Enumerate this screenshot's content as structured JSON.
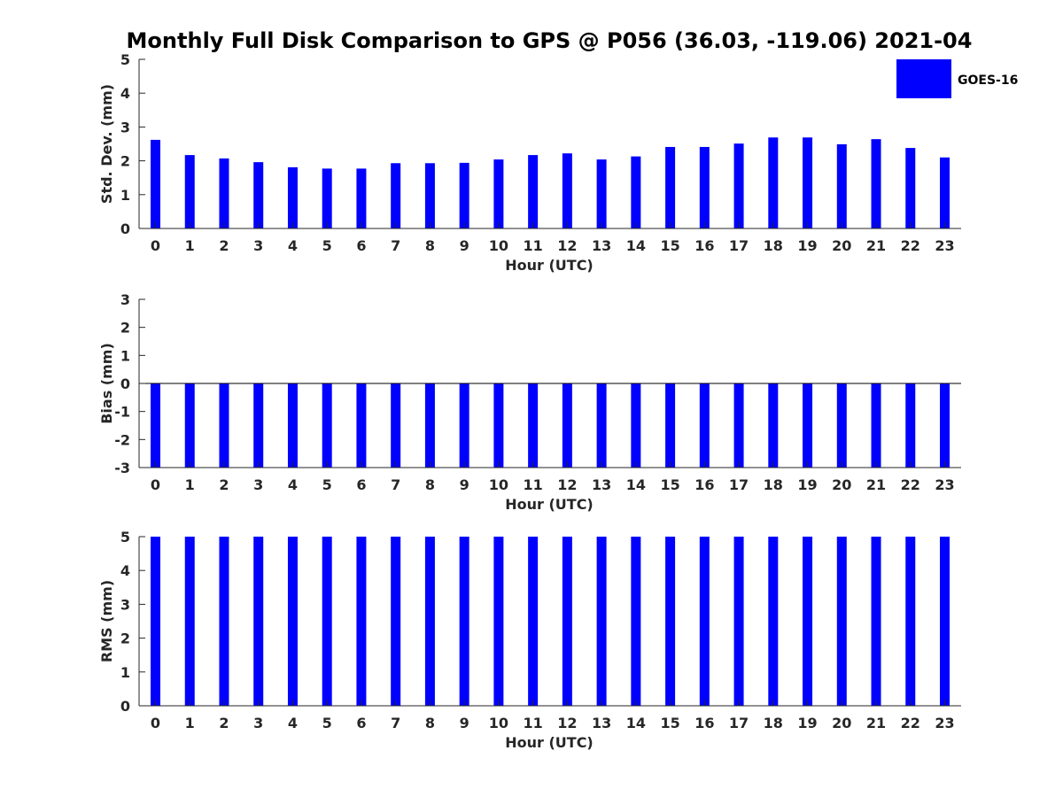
{
  "title": "Monthly Full Disk Comparison to GPS @ P056 (36.03, -119.06) 2021-04",
  "legend": {
    "label": "GOES-16",
    "color": "#0000ff",
    "placement": "top-right"
  },
  "chart_data": [
    {
      "type": "bar",
      "categories": [
        "0",
        "1",
        "2",
        "3",
        "4",
        "5",
        "6",
        "7",
        "8",
        "9",
        "10",
        "11",
        "12",
        "13",
        "14",
        "15",
        "16",
        "17",
        "18",
        "19",
        "20",
        "21",
        "22",
        "23"
      ],
      "series": [
        {
          "name": "GOES-16",
          "values": [
            2.62,
            2.17,
            2.07,
            1.96,
            1.81,
            1.77,
            1.77,
            1.93,
            1.93,
            1.94,
            2.04,
            2.17,
            2.22,
            2.04,
            2.13,
            2.41,
            2.41,
            2.51,
            2.69,
            2.69,
            2.49,
            2.64,
            2.38,
            2.1
          ]
        }
      ],
      "xlabel": "Hour (UTC)",
      "ylabel": "Std. Dev. (mm)",
      "ylim": [
        0,
        5
      ],
      "yticks": [
        "0",
        "1",
        "2",
        "3",
        "4",
        "5"
      ]
    },
    {
      "type": "bar",
      "categories": [
        "0",
        "1",
        "2",
        "3",
        "4",
        "5",
        "6",
        "7",
        "8",
        "9",
        "10",
        "11",
        "12",
        "13",
        "14",
        "15",
        "16",
        "17",
        "18",
        "19",
        "20",
        "21",
        "22",
        "23"
      ],
      "series": [
        {
          "name": "GOES-16",
          "values": [
            -3,
            -3,
            -3,
            -3,
            -3,
            -3,
            -3,
            -3,
            -3,
            -3,
            -3,
            -3,
            -3,
            -3,
            -3,
            -3,
            -3,
            -3,
            -3,
            -3,
            -3,
            -3,
            -3,
            -3
          ]
        }
      ],
      "xlabel": "Hour (UTC)",
      "ylabel": "Bias (mm)",
      "ylim": [
        -3,
        3
      ],
      "yticks": [
        "-3",
        "-2",
        "-1",
        "0",
        "1",
        "2",
        "3"
      ]
    },
    {
      "type": "bar",
      "categories": [
        "0",
        "1",
        "2",
        "3",
        "4",
        "5",
        "6",
        "7",
        "8",
        "9",
        "10",
        "11",
        "12",
        "13",
        "14",
        "15",
        "16",
        "17",
        "18",
        "19",
        "20",
        "21",
        "22",
        "23"
      ],
      "series": [
        {
          "name": "GOES-16",
          "values": [
            5,
            5,
            5,
            5,
            5,
            5,
            5,
            5,
            5,
            5,
            5,
            5,
            5,
            5,
            5,
            5,
            5,
            5,
            5,
            5,
            5,
            5,
            5,
            5
          ]
        }
      ],
      "xlabel": "Hour (UTC)",
      "ylabel": "RMS (mm)",
      "ylim": [
        0,
        5
      ],
      "yticks": [
        "0",
        "1",
        "2",
        "3",
        "4",
        "5"
      ]
    }
  ]
}
